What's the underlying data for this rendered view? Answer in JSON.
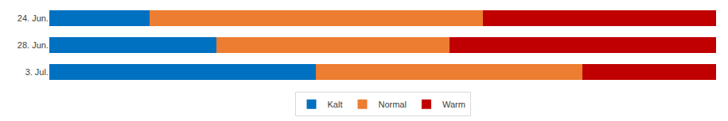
{
  "chart_data": {
    "type": "bar",
    "orientation": "horizontal",
    "stacked": true,
    "categories": [
      "24. Jun.",
      "28. Jun.",
      "3. Jul."
    ],
    "series": [
      {
        "name": "Kalt",
        "color": "#0070c0",
        "values": [
          15,
          25,
          40
        ]
      },
      {
        "name": "Normal",
        "color": "#ed7d31",
        "values": [
          50,
          35,
          40
        ]
      },
      {
        "name": "Warm",
        "color": "#c00000",
        "values": [
          35,
          40,
          20
        ]
      }
    ],
    "xlim": [
      0,
      100
    ],
    "grid": false,
    "legend": "bottom",
    "tick_labels": "y"
  }
}
